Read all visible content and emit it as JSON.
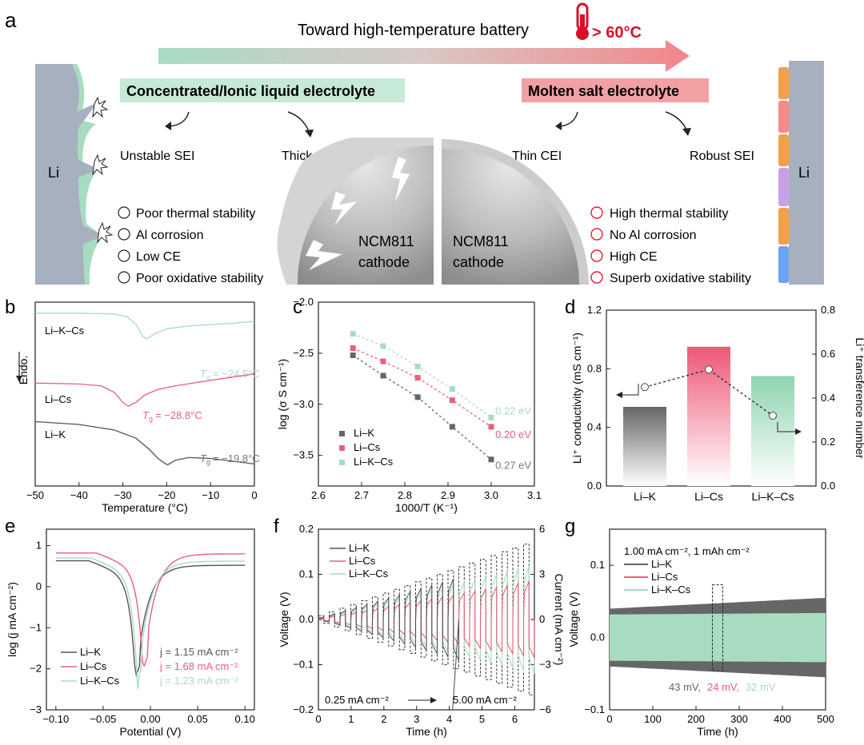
{
  "panel_a": {
    "label": "a",
    "header": "Toward high-temperature battery",
    "temp": "> 60°C",
    "left_box": "Concentrated/Ionic liquid electrolyte",
    "right_box": "Molten salt electrolyte",
    "li_left": "Li",
    "li_right": "Li",
    "unstable_sei": "Unstable SEI",
    "thick_cei": "Thick CEI",
    "thin_cei": "Thin CEI",
    "robust_sei": "Robust SEI",
    "cathode_left": [
      "NCM811",
      "cathode"
    ],
    "cathode_right": [
      "NCM811",
      "cathode"
    ],
    "cons": [
      "Poor thermal stability",
      "Al corrosion",
      "Low CE",
      "Poor oxidative stability"
    ],
    "pros": [
      "High thermal stability",
      "No Al corrosion",
      "High CE",
      "Superb oxidative stability"
    ],
    "colors": {
      "green": "#a8dcc0",
      "pink": "#f08c8c",
      "red": "#d8102a",
      "li": "#a7b0bf"
    }
  },
  "chart_data": [
    {
      "id": "b",
      "type": "line",
      "label": "b",
      "xlabel": "Temperature (°C)",
      "ylabel": "Endo.",
      "xlim": [
        -50,
        0
      ],
      "xticks": [
        -50,
        -40,
        -30,
        -20,
        -10,
        0
      ],
      "series": [
        {
          "name": "Li–K–Cs",
          "color": "#a8dcc0",
          "x": [
            -50,
            -40,
            -32,
            -29,
            -27,
            -25.5,
            -24.5,
            -23,
            -20,
            -15,
            -10,
            -5,
            0
          ],
          "y": [
            9.4,
            9.4,
            9.35,
            9.2,
            8.8,
            8.15,
            8.0,
            8.25,
            8.55,
            8.7,
            8.78,
            8.85,
            8.95
          ]
        },
        {
          "name": "Li–Cs",
          "color": "#e8607a",
          "x": [
            -50,
            -40,
            -35,
            -32,
            -30,
            -28.8,
            -27,
            -25,
            -22,
            -18,
            -10,
            0
          ],
          "y": [
            5.6,
            5.55,
            5.45,
            5.1,
            4.55,
            4.35,
            4.55,
            4.95,
            5.25,
            5.45,
            5.75,
            6.1
          ]
        },
        {
          "name": "Li–K",
          "color": "#555555",
          "x": [
            -50,
            -40,
            -32,
            -27,
            -24,
            -22,
            -20.5,
            -19.8,
            -18,
            -15,
            -10,
            0
          ],
          "y": [
            3.5,
            3.35,
            3.05,
            2.6,
            2.0,
            1.5,
            1.25,
            1.15,
            1.4,
            1.55,
            1.5,
            1.2
          ]
        }
      ],
      "tg_labels": [
        {
          "sub": "g",
          "value": "= −24.5°C",
          "color": "#a8dcc0"
        },
        {
          "sub": "g",
          "value": "= −28.8°C",
          "color": "#e8607a"
        },
        {
          "sub": "g",
          "value": "= −19.8°C",
          "color": "#777777"
        }
      ]
    },
    {
      "id": "c",
      "type": "scatter",
      "label": "c",
      "xlabel": "1000/T (K⁻¹)",
      "ylabel": "log (σ S cm⁻¹)",
      "xlim": [
        2.6,
        3.1
      ],
      "ylim": [
        -3.8,
        -2.0
      ],
      "xticks": [
        2.6,
        2.7,
        2.8,
        2.9,
        3.0,
        3.1
      ],
      "yticks": [
        -3.5,
        -3.0,
        -2.5,
        -2.0
      ],
      "series": [
        {
          "name": "Li–K",
          "color": "#666666",
          "x": [
            2.68,
            2.75,
            2.83,
            2.91,
            3.0
          ],
          "y": [
            -2.52,
            -2.72,
            -2.93,
            -3.22,
            -3.54
          ],
          "ea": "0.27 eV"
        },
        {
          "name": "Li–Cs",
          "color": "#e8607a",
          "x": [
            2.68,
            2.75,
            2.83,
            2.91,
            3.0
          ],
          "y": [
            -2.45,
            -2.58,
            -2.74,
            -2.96,
            -3.22
          ],
          "ea": "0.20 eV"
        },
        {
          "name": "Li–K–Cs",
          "color": "#a8dcc0",
          "x": [
            2.68,
            2.75,
            2.83,
            2.91,
            3.0
          ],
          "y": [
            -2.31,
            -2.43,
            -2.63,
            -2.85,
            -3.13
          ],
          "ea": "0.22 eV"
        }
      ]
    },
    {
      "id": "d",
      "type": "bar",
      "label": "d",
      "categories": [
        "Li–K",
        "Li–Cs",
        "Li–K–Cs"
      ],
      "values": [
        0.54,
        0.95,
        0.75
      ],
      "colors": [
        "#666666",
        "#e8607a",
        "#a8dcc0"
      ],
      "ylabel": "Li⁺ conductivity (mS cm⁻¹)",
      "ylim": [
        0,
        1.2
      ],
      "yticks": [
        0.0,
        0.4,
        0.8,
        1.2
      ],
      "y2label": "Li⁺ transference number",
      "y2lim": [
        0,
        0.8
      ],
      "y2ticks": [
        0.0,
        0.2,
        0.4,
        0.6,
        0.8
      ],
      "transference": [
        0.45,
        0.53,
        0.32
      ]
    },
    {
      "id": "e",
      "type": "line",
      "label": "e",
      "xlabel": "Potential (V)",
      "ylabel": "log (j mA cm⁻²)",
      "xlim": [
        -0.11,
        0.11
      ],
      "ylim": [
        -3,
        1.4
      ],
      "xticks": [
        -0.1,
        -0.05,
        0.0,
        0.05,
        0.1
      ],
      "yticks": [
        -3,
        -2,
        -1,
        0,
        1
      ],
      "series": [
        {
          "name": "Li–K",
          "color": "#555555",
          "e0": -0.015,
          "left": 0.63,
          "right": 0.52,
          "min": -2.15,
          "j": "j = 1.15 mA cm⁻²"
        },
        {
          "name": "Li–Cs",
          "color": "#e8607a",
          "e0": -0.007,
          "left": 0.82,
          "right": 0.8,
          "min": -1.95,
          "j": "j = 1.68 mA cm⁻²"
        },
        {
          "name": "Li–K–Cs",
          "color": "#a8dcc0",
          "e0": -0.013,
          "left": 0.7,
          "right": 0.62,
          "min": -2.2,
          "j": "j = 1.23 mA cm⁻²"
        }
      ]
    },
    {
      "id": "f",
      "type": "line",
      "label": "f",
      "xlabel": "Time (h)",
      "ylabel": "Voltage (V)",
      "y2label": "Current (mA cm⁻²)",
      "xlim": [
        0,
        6.6
      ],
      "ylim": [
        -0.2,
        0.2
      ],
      "y2lim": [
        -6,
        6
      ],
      "xticks": [
        0,
        1,
        2,
        3,
        4,
        5,
        6
      ],
      "yticks": [
        -0.2,
        -0.1,
        0.0,
        0.1,
        0.2
      ],
      "y2ticks": [
        -6,
        -3,
        0,
        3,
        6
      ],
      "series": [
        {
          "name": "Li–K",
          "color": "#555555",
          "stop": 4.1,
          "amp_start": 0.005,
          "amp_end": 0.14
        },
        {
          "name": "Li–Cs",
          "color": "#e8607a",
          "stop": 6.6,
          "amp_start": 0.003,
          "amp_end": 0.085
        },
        {
          "name": "Li–K–Cs",
          "color": "#a8dcc0",
          "stop": 6.6,
          "amp_start": 0.004,
          "amp_end": 0.12
        }
      ],
      "current_start": 0.25,
      "current_end": 5.0,
      "steps": 20,
      "annot_start": "0.25 mA cm⁻²",
      "annot_end": "5.00 mA cm⁻²"
    },
    {
      "id": "g",
      "type": "area",
      "label": "g",
      "xlabel": "Time (h)",
      "ylabel": "Voltage (V)",
      "xlim": [
        0,
        500
      ],
      "ylim": [
        -0.1,
        0.15
      ],
      "xticks": [
        0,
        100,
        200,
        300,
        400,
        500
      ],
      "yticks": [
        -0.1,
        0.0,
        0.1
      ],
      "condition": "1.00 mA cm⁻², 1 mAh cm⁻²",
      "series": [
        {
          "name": "Li–K",
          "color": "#666666",
          "amp_start": 0.04,
          "amp_end": 0.055
        },
        {
          "name": "Li–Cs",
          "color": "#ee6080",
          "amp_start": 0.024,
          "amp_end": 0.024
        },
        {
          "name": "Li–K–Cs",
          "color": "#a8dcc0",
          "amp_start": 0.032,
          "amp_end": 0.034
        }
      ],
      "overpotentials": [
        {
          "text": "43 mV,",
          "color": "#666666"
        },
        {
          "text": "24 mV,",
          "color": "#e8607a"
        },
        {
          "text": "32 mV",
          "color": "#a8dcc0"
        }
      ]
    }
  ]
}
